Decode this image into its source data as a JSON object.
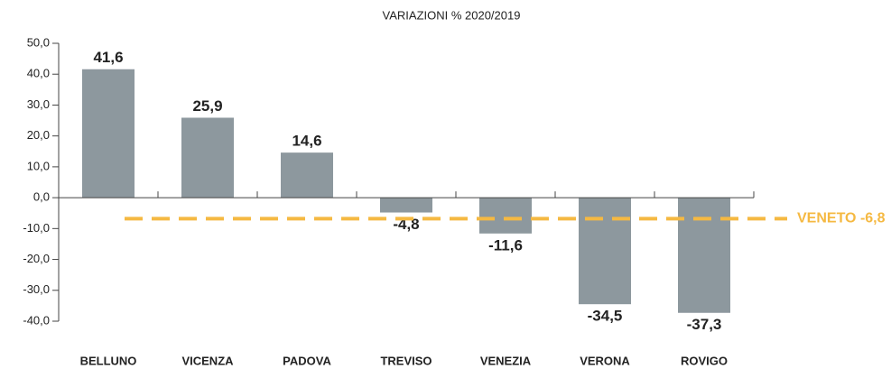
{
  "chart_data": {
    "type": "bar",
    "title": "VARIAZIONI % 2020/2019",
    "categories": [
      "BELLUNO",
      "VICENZA",
      "PADOVA",
      "TREVISO",
      "VENEZIA",
      "VERONA",
      "ROVIGO"
    ],
    "values": [
      41.6,
      25.9,
      14.6,
      -4.8,
      -11.6,
      -34.5,
      -37.3
    ],
    "value_labels": [
      "41,6",
      "25,9",
      "14,6",
      "-4,8",
      "-11,6",
      "-34,5",
      "-37,3"
    ],
    "color": "#8d989e",
    "ylim": [
      -40,
      50
    ],
    "yticks": [
      {
        "value": -40,
        "label": "-40,0"
      },
      {
        "value": -30,
        "label": "-30,0"
      },
      {
        "value": -20,
        "label": "-20,0"
      },
      {
        "value": -10,
        "label": "-10,0"
      },
      {
        "value": 0,
        "label": "0,0"
      },
      {
        "value": 10,
        "label": "10,0"
      },
      {
        "value": 20,
        "label": "20,0"
      },
      {
        "value": 30,
        "label": "30,0"
      },
      {
        "value": 40,
        "label": "40,0"
      },
      {
        "value": 50,
        "label": "50,0"
      }
    ],
    "grid": false,
    "reference_line": {
      "value": -6.8,
      "label": "VENETO -6,8",
      "color": "#f5b942"
    }
  }
}
